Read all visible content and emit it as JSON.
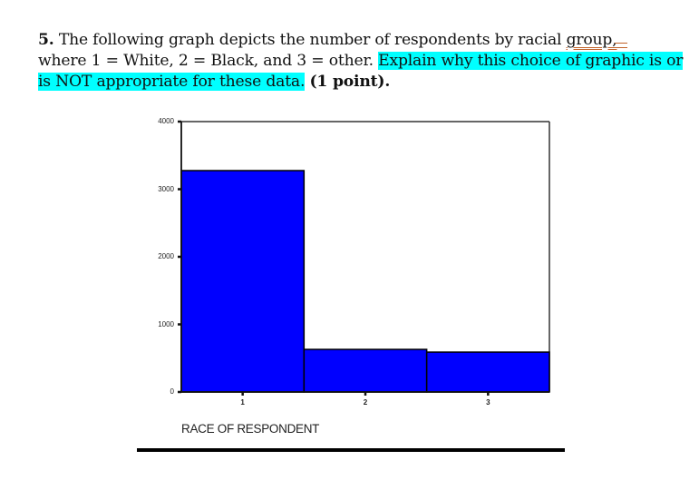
{
  "question": {
    "number": "5.",
    "line1_text": "The following graph depicts the number of respondents by racial ",
    "line1_flagged": "group,",
    "line2_plain": "where 1 = White, 2 = Black, and 3 = other. ",
    "line2_highlight": "Explain why this choice of graphic is or",
    "line3_highlight": "is NOT appropriate for these data.",
    "line3_bold": "(1 point).",
    "highlight_color": "#00FFFF",
    "grammar_flag_color": "#C0632A"
  },
  "chart_data": {
    "type": "bar",
    "title": "",
    "xlabel": "RACE OF RESPONDENT",
    "ylabel": "",
    "categories": [
      "1",
      "2",
      "3"
    ],
    "category_meaning": {
      "1": "White",
      "2": "Black",
      "3": "other"
    },
    "values": [
      3275,
      630,
      590
    ],
    "ylim": [
      0,
      4000
    ],
    "yticks": [
      0,
      1000,
      2000,
      3000,
      4000
    ],
    "ytick_labels": [
      "0",
      "1000",
      "2000",
      "3000",
      "4000"
    ],
    "bar_color": "#0000FF",
    "bar_edge_color": "#000000",
    "bar_gap": 0,
    "grid": false,
    "legend": false
  }
}
